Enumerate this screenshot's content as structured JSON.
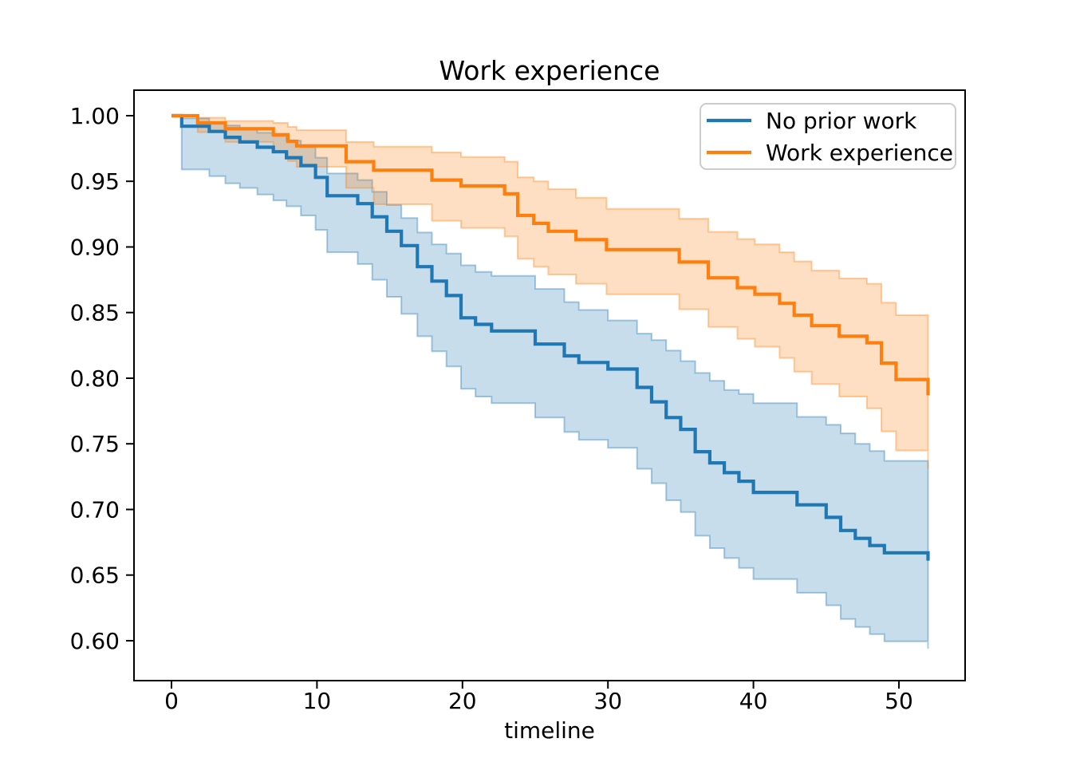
{
  "title": "Work experience",
  "axes": {
    "xlabel": "timeline",
    "x_tick_labels": [
      "0",
      "10",
      "20",
      "30",
      "40",
      "50"
    ],
    "y_tick_labels": [
      "1.00",
      "0.95",
      "0.90",
      "0.85",
      "0.80",
      "0.75",
      "0.70",
      "0.65",
      "0.60"
    ]
  },
  "legend": {
    "items": [
      {
        "label": "No prior work",
        "color": "#1f77b4"
      },
      {
        "label": "Work experience",
        "color": "#ff7f0e"
      }
    ]
  },
  "chart_data": {
    "type": "line",
    "subtype": "kaplan-meier-step-with-confidence-bands",
    "title": "Work experience",
    "xlabel": "timeline",
    "ylabel": "",
    "xlim": [
      -2.577,
      54.55
    ],
    "ylim": [
      0.5696,
      1.01945
    ],
    "x_ticks": [
      0,
      10,
      20,
      30,
      40,
      50
    ],
    "y_ticks": [
      1.0,
      0.95,
      0.9,
      0.85,
      0.8,
      0.75,
      0.7,
      0.65,
      0.6
    ],
    "grid": false,
    "legend_position": "upper right",
    "background": "#ffffff",
    "spine_color": "#000000",
    "band_fill_opacity": 0.25,
    "band_edge_opacity": 0.38,
    "series": [
      {
        "name": "No prior work",
        "color": "#1f77b4",
        "steps": [
          [
            0,
            1.0
          ],
          [
            0.7,
            0.992
          ],
          [
            2.6,
            0.988
          ],
          [
            3.7,
            0.9835
          ],
          [
            4.7,
            0.98
          ],
          [
            5.9,
            0.976
          ],
          [
            7.0,
            0.9725
          ],
          [
            7.9,
            0.968
          ],
          [
            8.9,
            0.962
          ],
          [
            9.9,
            0.953
          ],
          [
            10.7,
            0.939
          ],
          [
            12.8,
            0.933
          ],
          [
            13.8,
            0.923
          ],
          [
            14.8,
            0.912
          ],
          [
            15.8,
            0.901
          ],
          [
            16.9,
            0.885
          ],
          [
            17.9,
            0.874
          ],
          [
            18.9,
            0.863
          ],
          [
            19.9,
            0.846
          ],
          [
            20.9,
            0.841
          ],
          [
            22.0,
            0.836
          ],
          [
            25.0,
            0.826
          ],
          [
            27.0,
            0.817
          ],
          [
            28.0,
            0.812
          ],
          [
            30.0,
            0.807
          ],
          [
            32.0,
            0.793
          ],
          [
            33.0,
            0.782
          ],
          [
            34.0,
            0.77
          ],
          [
            35.0,
            0.761
          ],
          [
            36.0,
            0.744
          ],
          [
            37.0,
            0.7355
          ],
          [
            38.0,
            0.728
          ],
          [
            39.0,
            0.7215
          ],
          [
            40.0,
            0.713
          ],
          [
            43.0,
            0.7035
          ],
          [
            45.0,
            0.694
          ],
          [
            46.0,
            0.684
          ],
          [
            47.0,
            0.678
          ],
          [
            48.0,
            0.6725
          ],
          [
            49.0,
            0.667
          ],
          [
            52.0,
            0.661
          ]
        ],
        "ci_upper": [
          [
            0,
            1.0
          ],
          [
            0.7,
            0.998
          ],
          [
            2.6,
            0.995
          ],
          [
            3.7,
            0.9925
          ],
          [
            4.7,
            0.99
          ],
          [
            5.9,
            0.987
          ],
          [
            7.0,
            0.9845
          ],
          [
            7.9,
            0.981
          ],
          [
            8.9,
            0.976
          ],
          [
            9.9,
            0.968
          ],
          [
            10.7,
            0.956
          ],
          [
            12.8,
            0.951
          ],
          [
            13.8,
            0.942
          ],
          [
            14.8,
            0.932
          ],
          [
            15.8,
            0.922
          ],
          [
            16.9,
            0.911
          ],
          [
            17.9,
            0.902
          ],
          [
            18.9,
            0.895
          ],
          [
            19.9,
            0.886
          ],
          [
            20.9,
            0.881
          ],
          [
            22.0,
            0.878
          ],
          [
            25.0,
            0.868
          ],
          [
            27.0,
            0.858
          ],
          [
            28.0,
            0.852
          ],
          [
            30.0,
            0.844
          ],
          [
            32.0,
            0.834
          ],
          [
            33.0,
            0.829
          ],
          [
            34.0,
            0.821
          ],
          [
            35.0,
            0.813
          ],
          [
            36.0,
            0.804
          ],
          [
            37.0,
            0.798
          ],
          [
            38.0,
            0.791
          ],
          [
            39.0,
            0.788
          ],
          [
            40.0,
            0.781
          ],
          [
            43.0,
            0.7705
          ],
          [
            45.0,
            0.7645
          ],
          [
            46.0,
            0.758
          ],
          [
            47.0,
            0.75
          ],
          [
            48.0,
            0.7445
          ],
          [
            49.0,
            0.737
          ],
          [
            52.0,
            0.731
          ]
        ],
        "ci_lower": [
          [
            0,
            1.0
          ],
          [
            0.7,
            0.959
          ],
          [
            2.6,
            0.954
          ],
          [
            3.7,
            0.9485
          ],
          [
            4.7,
            0.945
          ],
          [
            5.9,
            0.94
          ],
          [
            7.0,
            0.9355
          ],
          [
            7.9,
            0.931
          ],
          [
            8.9,
            0.924
          ],
          [
            9.9,
            0.913
          ],
          [
            10.7,
            0.896
          ],
          [
            12.8,
            0.887
          ],
          [
            13.8,
            0.875
          ],
          [
            14.8,
            0.862
          ],
          [
            15.8,
            0.849
          ],
          [
            16.9,
            0.832
          ],
          [
            17.9,
            0.8205
          ],
          [
            18.9,
            0.809
          ],
          [
            19.9,
            0.792
          ],
          [
            20.9,
            0.786
          ],
          [
            22.0,
            0.781
          ],
          [
            25.0,
            0.77
          ],
          [
            27.0,
            0.759
          ],
          [
            28.0,
            0.753
          ],
          [
            30.0,
            0.747
          ],
          [
            32.0,
            0.731
          ],
          [
            33.0,
            0.72
          ],
          [
            34.0,
            0.707
          ],
          [
            35.0,
            0.698
          ],
          [
            36.0,
            0.68
          ],
          [
            37.0,
            0.6705
          ],
          [
            38.0,
            0.663
          ],
          [
            39.0,
            0.6555
          ],
          [
            40.0,
            0.647
          ],
          [
            43.0,
            0.6365
          ],
          [
            45.0,
            0.627
          ],
          [
            46.0,
            0.6165
          ],
          [
            47.0,
            0.6105
          ],
          [
            48.0,
            0.605
          ],
          [
            49.0,
            0.5995
          ],
          [
            52.0,
            0.594
          ]
        ]
      },
      {
        "name": "Work experience",
        "color": "#ff7f0e",
        "steps": [
          [
            0,
            1.0
          ],
          [
            1.8,
            0.9945
          ],
          [
            3.7,
            0.99
          ],
          [
            7.0,
            0.9855
          ],
          [
            8.0,
            0.9805
          ],
          [
            8.6,
            0.977
          ],
          [
            12.0,
            0.965
          ],
          [
            13.9,
            0.9585
          ],
          [
            17.9,
            0.951
          ],
          [
            19.9,
            0.9465
          ],
          [
            22.9,
            0.9405
          ],
          [
            23.8,
            0.924
          ],
          [
            24.9,
            0.918
          ],
          [
            25.9,
            0.912
          ],
          [
            27.8,
            0.9055
          ],
          [
            29.9,
            0.898
          ],
          [
            34.9,
            0.8885
          ],
          [
            36.9,
            0.8765
          ],
          [
            38.9,
            0.869
          ],
          [
            40.1,
            0.864
          ],
          [
            41.8,
            0.857
          ],
          [
            42.8,
            0.848
          ],
          [
            44.0,
            0.84
          ],
          [
            45.9,
            0.832
          ],
          [
            47.8,
            0.827
          ],
          [
            48.8,
            0.8115
          ],
          [
            49.8,
            0.799
          ],
          [
            52.0,
            0.787
          ]
        ],
        "ci_upper": [
          [
            0,
            1.0
          ],
          [
            1.8,
            0.9985
          ],
          [
            3.7,
            0.996
          ],
          [
            7.0,
            0.9945
          ],
          [
            8.0,
            0.9915
          ],
          [
            8.6,
            0.989
          ],
          [
            12.0,
            0.98
          ],
          [
            13.9,
            0.9765
          ],
          [
            17.9,
            0.972
          ],
          [
            19.9,
            0.9685
          ],
          [
            22.9,
            0.965
          ],
          [
            23.8,
            0.953
          ],
          [
            24.9,
            0.95
          ],
          [
            25.9,
            0.944
          ],
          [
            27.8,
            0.9375
          ],
          [
            29.9,
            0.929
          ],
          [
            34.9,
            0.9215
          ],
          [
            36.9,
            0.9115
          ],
          [
            38.9,
            0.906
          ],
          [
            40.1,
            0.902
          ],
          [
            41.8,
            0.896
          ],
          [
            42.8,
            0.889
          ],
          [
            44.0,
            0.882
          ],
          [
            45.9,
            0.876
          ],
          [
            47.8,
            0.872
          ],
          [
            48.8,
            0.8575
          ],
          [
            49.8,
            0.848
          ],
          [
            52.0,
            0.84
          ]
        ],
        "ci_lower": [
          [
            0,
            1.0
          ],
          [
            1.8,
            0.9875
          ],
          [
            3.7,
            0.98
          ],
          [
            7.0,
            0.9725
          ],
          [
            8.0,
            0.9655
          ],
          [
            8.6,
            0.961
          ],
          [
            12.0,
            0.945
          ],
          [
            13.9,
            0.9325
          ],
          [
            17.9,
            0.92
          ],
          [
            19.9,
            0.9145
          ],
          [
            22.9,
            0.908
          ],
          [
            23.8,
            0.891
          ],
          [
            24.9,
            0.885
          ],
          [
            25.9,
            0.879
          ],
          [
            27.8,
            0.872
          ],
          [
            29.9,
            0.864
          ],
          [
            34.9,
            0.8525
          ],
          [
            36.9,
            0.839
          ],
          [
            38.9,
            0.83
          ],
          [
            40.1,
            0.824
          ],
          [
            41.8,
            0.8155
          ],
          [
            42.8,
            0.805
          ],
          [
            44.0,
            0.7955
          ],
          [
            45.9,
            0.786
          ],
          [
            47.8,
            0.777
          ],
          [
            48.8,
            0.7595
          ],
          [
            49.8,
            0.745
          ],
          [
            52.0,
            0.731
          ]
        ]
      }
    ]
  }
}
